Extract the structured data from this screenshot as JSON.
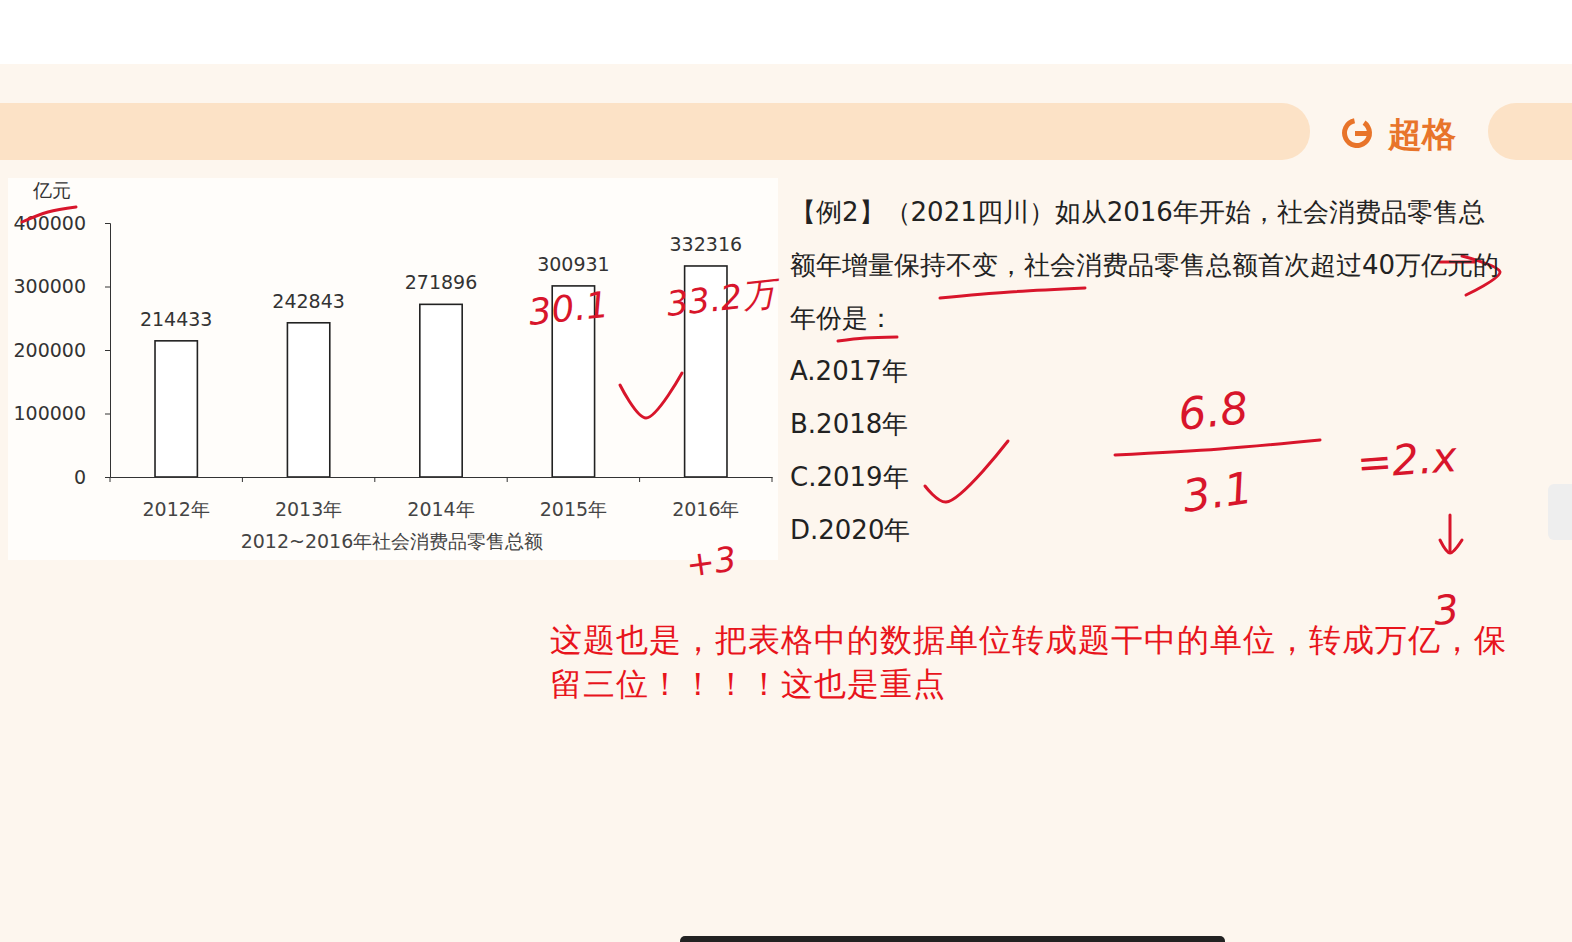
{
  "chart_data": {
    "type": "bar",
    "title": "2012~2016年社会消费品零售总额",
    "y_label": "亿元",
    "categories": [
      "2012年",
      "2013年",
      "2014年",
      "2015年",
      "2016年"
    ],
    "values": [
      214433,
      242843,
      271896,
      300931,
      332316
    ],
    "color": "#ffffff",
    "ylim": [
      0,
      400000
    ],
    "yticks": [
      0,
      100000,
      200000,
      300000,
      400000
    ],
    "grid": false,
    "data_labels": true
  },
  "header": {
    "brand": "超格"
  },
  "question": {
    "stem": "【例2】（2021四川）如从2016年开始，社会消费品零售总额年增量保持不变，社会消费品零售总额首次超过40万亿元的年份是：",
    "options": [
      "A.2017年",
      "B.2018年",
      "C.2019年",
      "D.2020年"
    ]
  },
  "handwriting": [
    "30.1",
    "33.2万",
    "+3",
    "6.8",
    "3.1",
    "=2.x",
    "3"
  ],
  "note": "这题也是，把表格中的数据单位转成题干中的单位，转成万亿，保留三位！！！！这也是重点"
}
